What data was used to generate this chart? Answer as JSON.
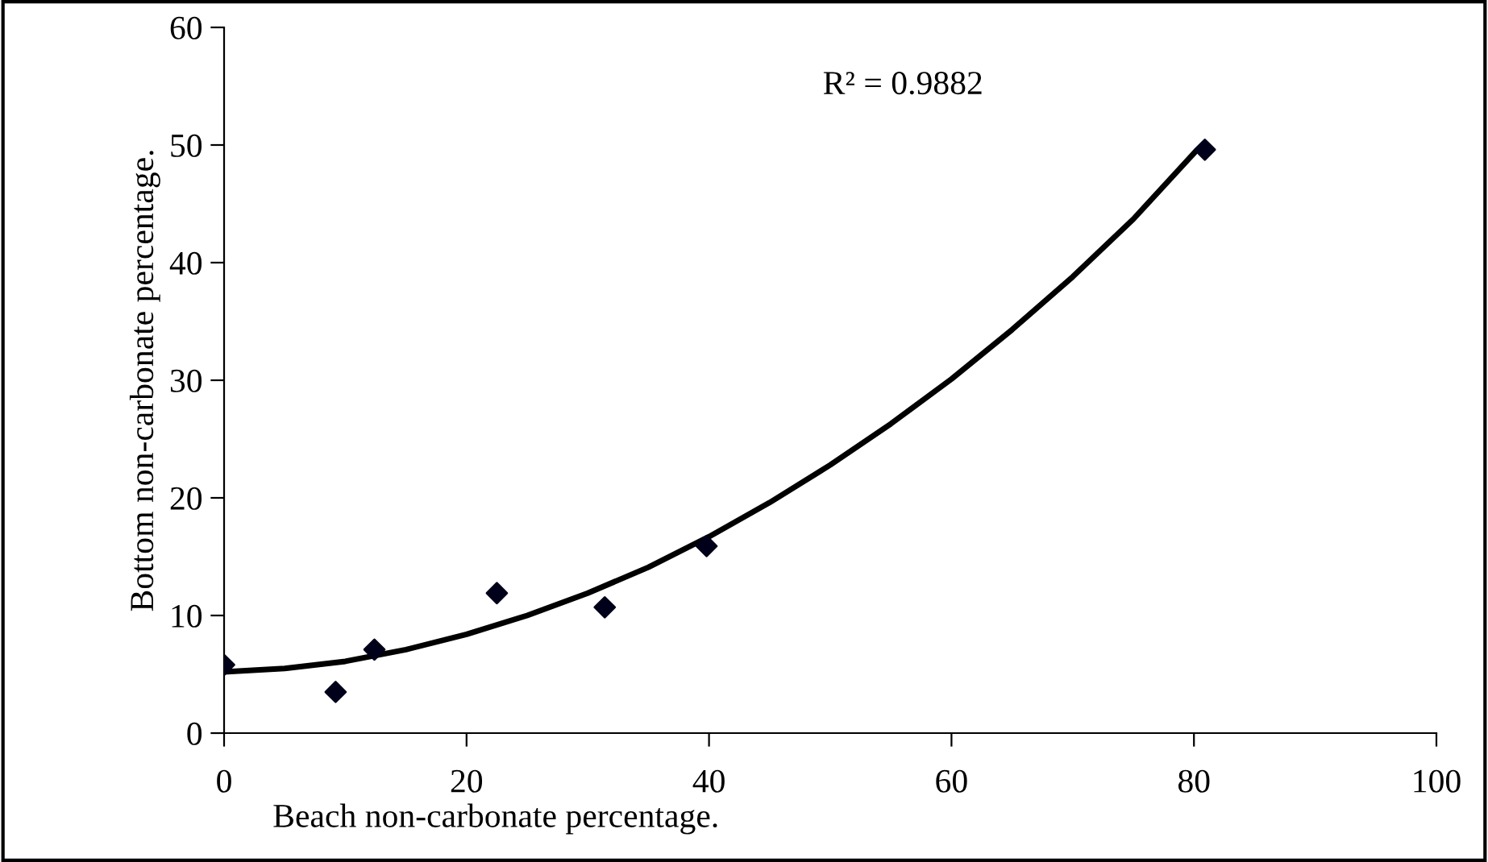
{
  "chart_data": {
    "type": "scatter",
    "xlabel": "Beach non-carbonate percentage.",
    "ylabel": "Bottom non-carbonate percentage.",
    "xlim": [
      0,
      100
    ],
    "xticks": [
      0,
      20,
      40,
      60,
      80,
      100
    ],
    "ylim": [
      0,
      60
    ],
    "yticks": [
      0,
      10,
      20,
      30,
      40,
      50,
      60
    ],
    "grid": false,
    "marker": "diamond",
    "series": [
      {
        "color": "#00001a",
        "x": [
          0,
          9.2,
          12.4,
          22.5,
          31.4,
          39.8,
          80.9
        ],
        "values": [
          5.8,
          3.5,
          7.1,
          11.9,
          10.7,
          15.9,
          49.6
        ]
      },
      {
        "type": "line",
        "color": "#000000",
        "line_style": "solid",
        "marker": "none",
        "x": [
          0,
          5,
          10,
          15,
          20,
          25,
          30,
          35,
          40,
          45,
          50,
          55,
          60,
          65,
          70,
          75,
          80
        ],
        "values": [
          5.2,
          5.5,
          6.1,
          7.1,
          8.4,
          10,
          11.9,
          14.1,
          16.7,
          19.6,
          22.8,
          26.3,
          30.1,
          34.3,
          38.8,
          43.7,
          49.3
        ]
      }
    ],
    "annotations": [
      "R² = 0.9882"
    ]
  }
}
